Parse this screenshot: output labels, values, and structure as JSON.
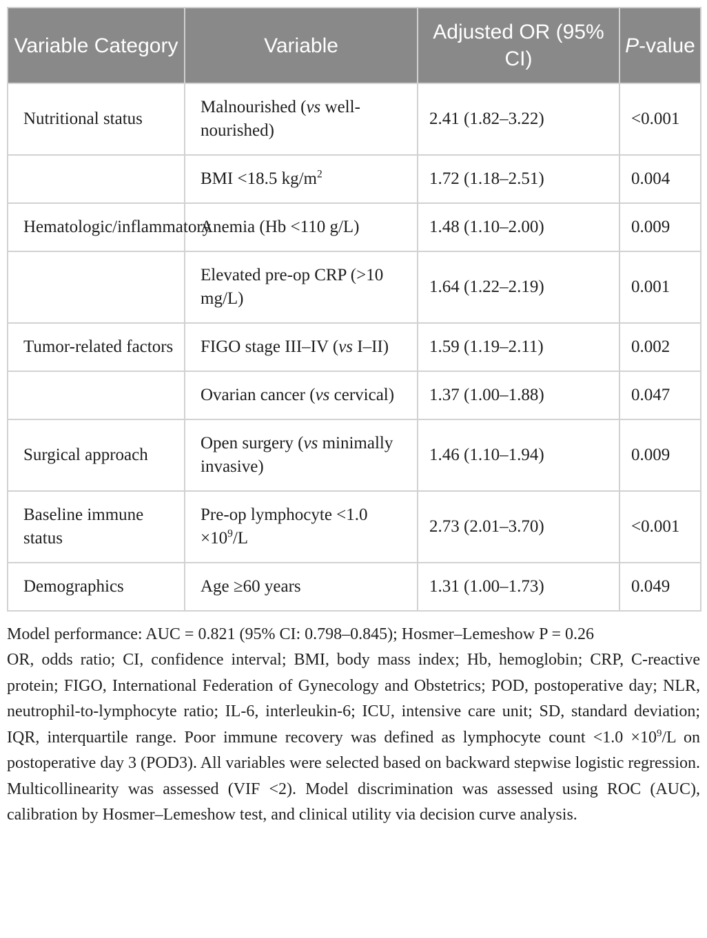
{
  "colors": {
    "header_bg": "#898989",
    "header_text": "#ffffff",
    "cell_border": "#d1d1d1",
    "body_text": "#1d1d1d"
  },
  "table": {
    "header_labels": {
      "variable_category": "Variable Category",
      "variable": "Variable",
      "adjusted_or": "Adjusted OR (95% CI)",
      "p_value_parts": [
        {
          "t": "P",
          "i": true
        },
        {
          "t": "-value"
        }
      ]
    },
    "rows": [
      {
        "category": "Nutritional status",
        "variable": [
          {
            "t": "Malnourished ("
          },
          {
            "t": "vs",
            "i": true
          },
          {
            "t": " well-nourished)"
          }
        ],
        "or": "2.41 (1.82–3.22)",
        "p": "<0.001"
      },
      {
        "category": "",
        "variable": [
          {
            "t": "BMI <18.5 kg/m"
          },
          {
            "t": "2",
            "sup": true
          }
        ],
        "or": "1.72 (1.18–2.51)",
        "p": "0.004"
      },
      {
        "category": "Hematologic/inflammatory",
        "variable": [
          {
            "t": "Anemia (Hb <110 g/L)"
          }
        ],
        "or": "1.48 (1.10–2.00)",
        "p": "0.009"
      },
      {
        "category": "",
        "variable": [
          {
            "t": "Elevated pre-op CRP (>10 mg/L)"
          }
        ],
        "or": "1.64 (1.22–2.19)",
        "p": "0.001"
      },
      {
        "category": "Tumor-related factors",
        "variable": [
          {
            "t": "FIGO stage III–IV ("
          },
          {
            "t": "vs",
            "i": true
          },
          {
            "t": " I–II)"
          }
        ],
        "or": "1.59 (1.19–2.11)",
        "p": "0.002"
      },
      {
        "category": "",
        "variable": [
          {
            "t": "Ovarian cancer ("
          },
          {
            "t": "vs",
            "i": true
          },
          {
            "t": " cervical)"
          }
        ],
        "or": "1.37 (1.00–1.88)",
        "p": "0.047"
      },
      {
        "category": "Surgical approach",
        "variable": [
          {
            "t": "Open surgery ("
          },
          {
            "t": "vs",
            "i": true
          },
          {
            "t": " minimally invasive)"
          }
        ],
        "or": "1.46 (1.10–1.94)",
        "p": "0.009"
      },
      {
        "category": "Baseline immune status",
        "variable": [
          {
            "t": "Pre-op lymphocyte <1.0 ×10"
          },
          {
            "t": "9",
            "sup": true
          },
          {
            "t": "/L"
          }
        ],
        "or": "2.73 (2.01–3.70)",
        "p": "<0.001"
      },
      {
        "category": "Demographics",
        "variable": [
          {
            "t": "Age ≥60 years"
          }
        ],
        "or": "1.31 (1.00–1.73)",
        "p": "0.049"
      }
    ]
  },
  "footnote": {
    "model_performance": "Model performance: AUC = 0.821 (95% CI: 0.798–0.845); Hosmer–Lemeshow P = 0.26",
    "abbreviations_parts": [
      {
        "t": "OR, odds ratio; CI, confidence interval; BMI, body mass index; Hb, hemoglobin; CRP, C-reactive protein; FIGO, International Federation of Gynecology and Obstetrics; POD, postoperative day; NLR, neutrophil-to-lymphocyte ratio; IL-6, interleukin-6; ICU, intensive care unit; SD, standard deviation; IQR, interquartile range. Poor immune recovery was defined as lymphocyte count <1.0 ×10"
      },
      {
        "t": "9",
        "sup": true
      },
      {
        "t": "/L on postoperative day 3 (POD3). All variables were selected based on backward stepwise logistic regression. Multicollinearity was assessed (VIF <2). Model discrimination was assessed using ROC (AUC), calibration by Hosmer–Lemeshow test, and clinical utility via decision curve analysis."
      }
    ]
  }
}
